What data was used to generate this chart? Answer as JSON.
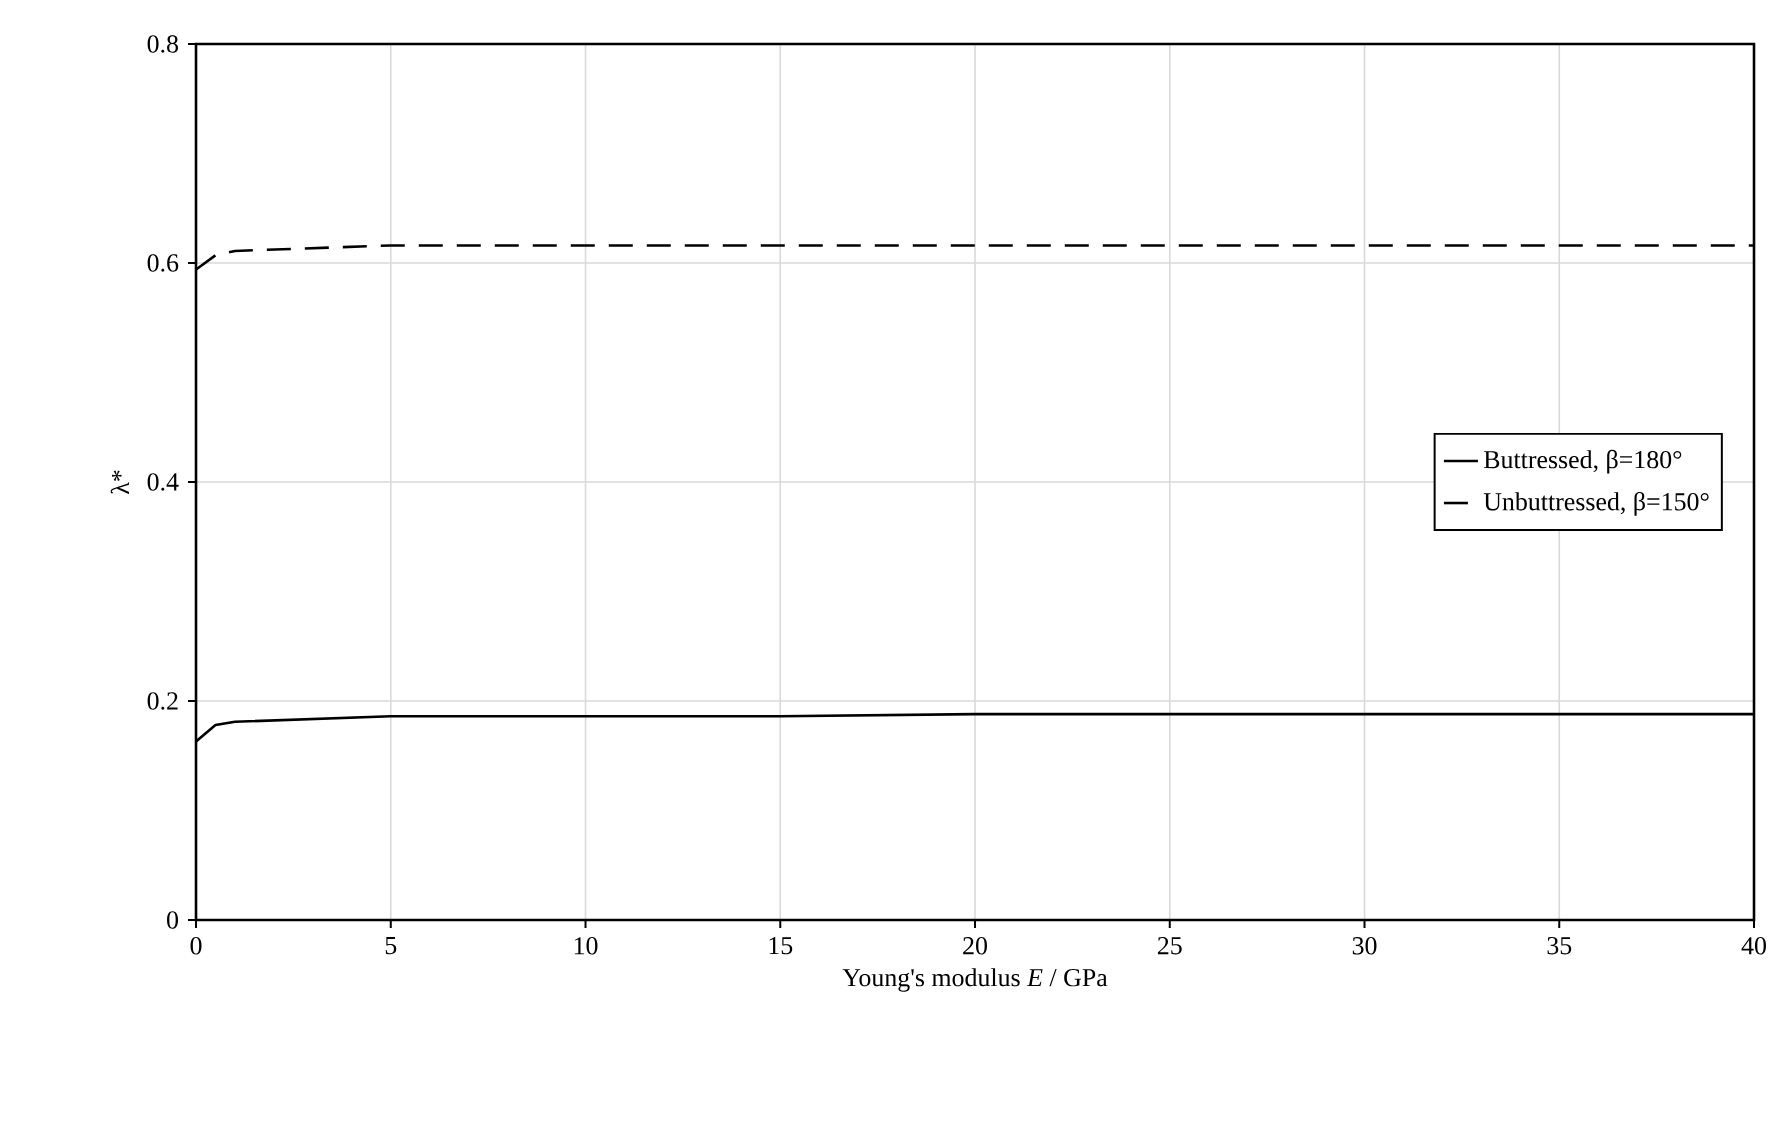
{
  "chart_data": {
    "type": "line",
    "xlabel": "Young's modulus *E* / GPa",
    "ylabel": "λ*",
    "xlim": [
      0,
      40
    ],
    "ylim": [
      0,
      0.8
    ],
    "xticks": [
      0,
      5,
      10,
      15,
      20,
      25,
      30,
      35,
      40
    ],
    "yticks": [
      0,
      0.2,
      0.4,
      0.6,
      0.8
    ],
    "grid": true,
    "legend": "right",
    "series": [
      {
        "name": "Buttressed, β=180°",
        "color": "#000000",
        "line_style": "solid",
        "x": [
          0,
          0.5,
          1,
          5,
          15,
          20,
          40
        ],
        "values": [
          0.163,
          0.178,
          0.181,
          0.186,
          0.186,
          0.188,
          0.188
        ]
      },
      {
        "name": "Unbuttressed, β=150°",
        "color": "#000000",
        "line_style": "dashed",
        "x": [
          0,
          0.5,
          1,
          5,
          40
        ],
        "values": [
          0.594,
          0.607,
          0.611,
          0.616,
          0.616
        ]
      }
    ]
  }
}
